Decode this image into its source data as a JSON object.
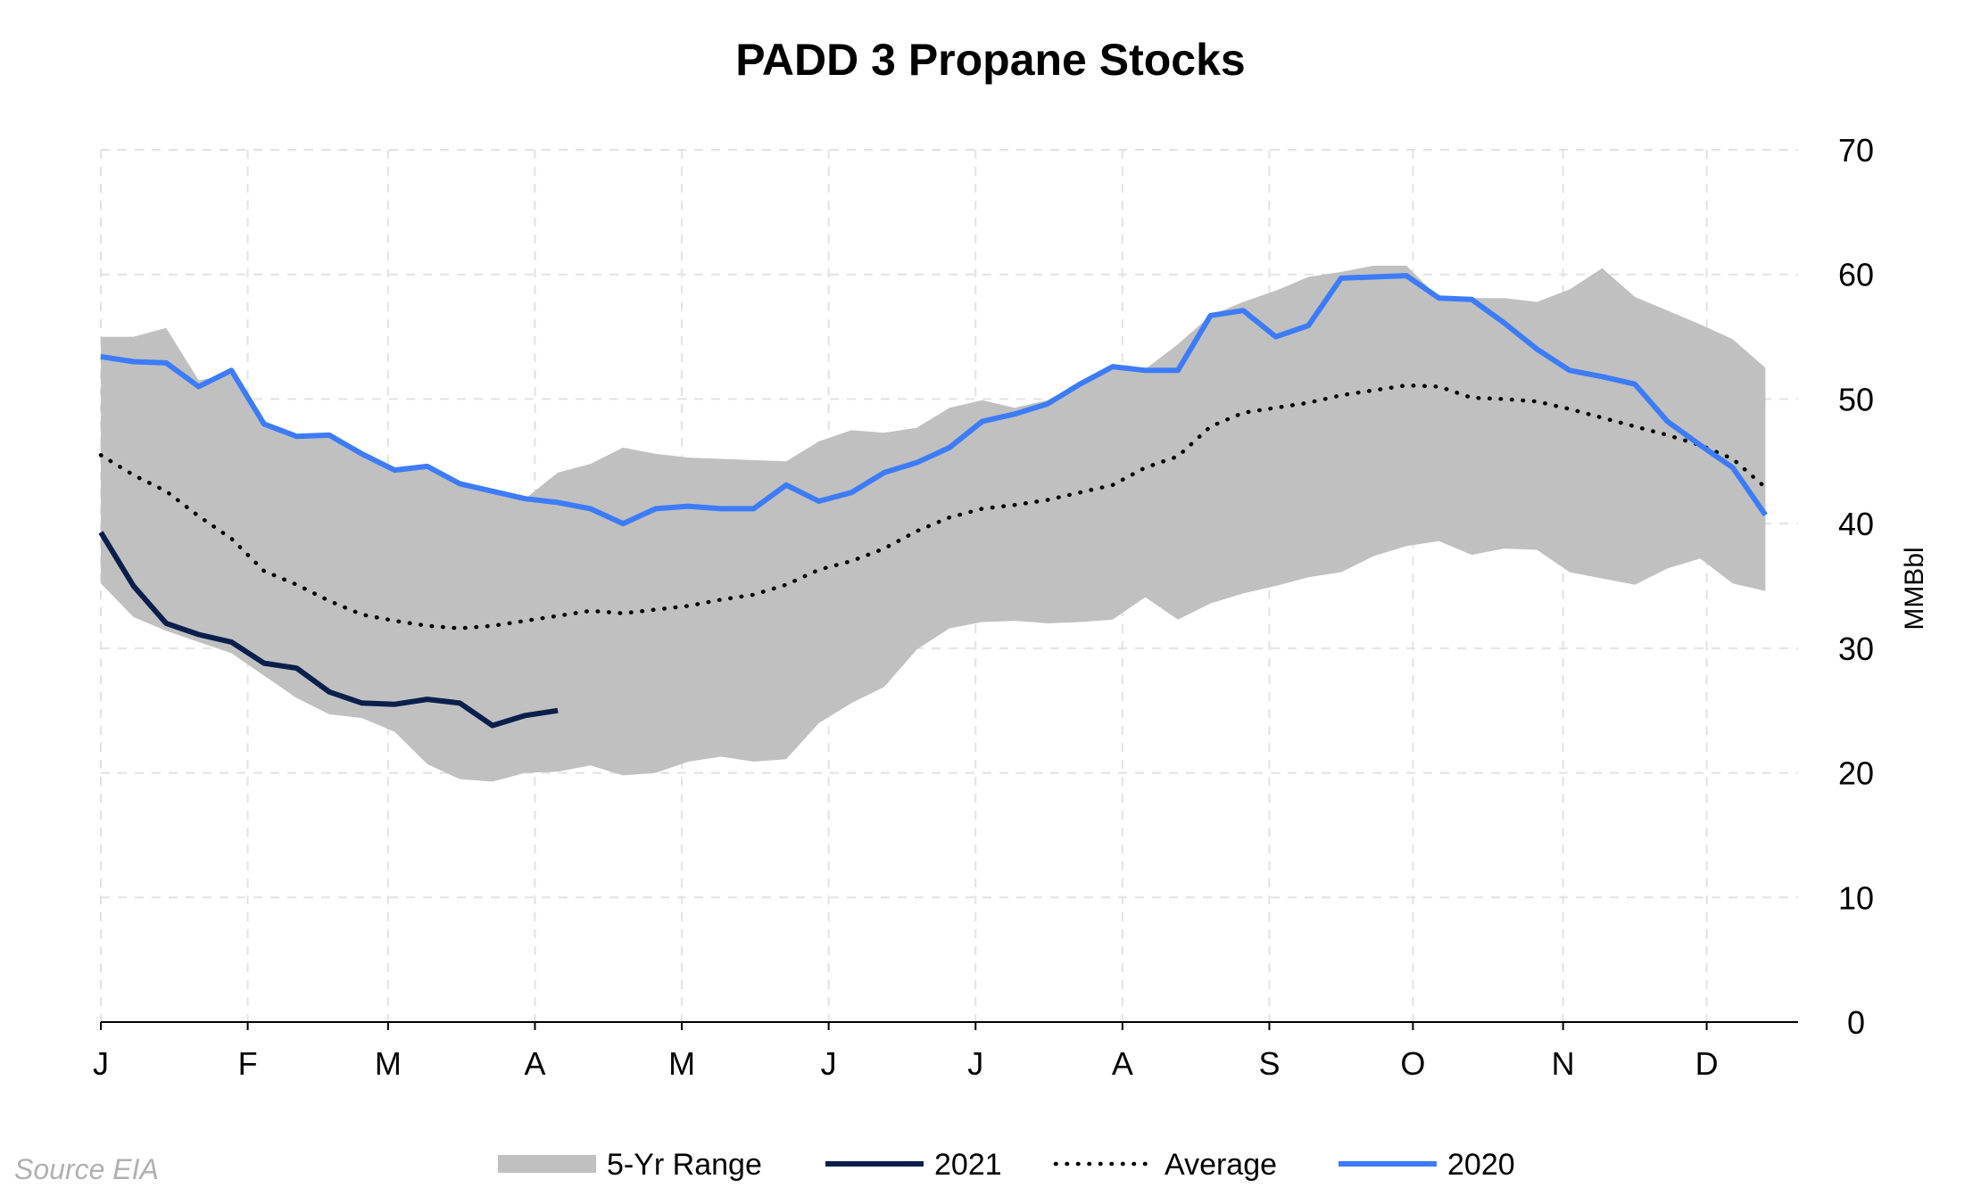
{
  "chart_data": {
    "type": "line",
    "title": "PADD 3 Propane Stocks",
    "ylabel": "MMBbl",
    "xlabel": "",
    "ylim": [
      0,
      70
    ],
    "yticks": [
      0,
      10,
      20,
      30,
      40,
      50,
      60,
      70
    ],
    "grid": true,
    "x_week_range": [
      1,
      53
    ],
    "month_labels": [
      "J",
      "F",
      "M",
      "A",
      "M",
      "J",
      "J",
      "A",
      "S",
      "O",
      "N",
      "D"
    ],
    "month_start_weeks": [
      1,
      5.5,
      9.8,
      14.3,
      18.8,
      23.3,
      27.8,
      32.3,
      36.8,
      41.2,
      45.8,
      50.2
    ],
    "legend_position": "bottom",
    "range_band": {
      "name": "5-Yr Range",
      "color": "#c0c0c0",
      "upper": [
        55,
        55,
        55.7,
        51.5,
        52,
        48,
        47,
        47.1,
        45.4,
        44.3,
        44.6,
        43.2,
        42.5,
        42,
        44.1,
        44.8,
        46.1,
        45.6,
        45.3,
        45.2,
        45.1,
        45,
        46.6,
        47.5,
        47.3,
        47.7,
        49.3,
        49.9,
        49.3,
        49.9,
        51.3,
        52.6,
        52.4,
        54.4,
        56.7,
        57.8,
        58.7,
        59.8,
        60.2,
        60.7,
        60.7,
        58.1,
        58.1,
        58.1,
        57.8,
        58.8,
        60.5,
        58.2,
        57.1,
        56,
        54.8,
        52.5
      ],
      "lower": [
        35.2,
        32.5,
        31.4,
        30.5,
        29.6,
        27.8,
        26,
        24.7,
        24.4,
        23.3,
        20.7,
        19.5,
        19.3,
        20,
        20.1,
        20.6,
        19.8,
        20,
        20.9,
        21.3,
        20.9,
        21.1,
        24,
        25.6,
        26.9,
        29.9,
        31.6,
        32.1,
        32.2,
        32,
        32.1,
        32.3,
        34.1,
        32.3,
        33.6,
        34.4,
        35,
        35.7,
        36.1,
        37.4,
        38.2,
        38.6,
        37.5,
        38,
        37.9,
        36.1,
        35.6,
        35.1,
        36.4,
        37.2,
        35.2,
        34.6
      ]
    },
    "series": [
      {
        "name": "2021",
        "color": "#0b1f4d",
        "style": "solid",
        "values": [
          39.3,
          35,
          32,
          31.1,
          30.5,
          28.8,
          28.4,
          26.5,
          25.6,
          25.5,
          25.9,
          25.6,
          23.8,
          24.6,
          25
        ]
      },
      {
        "name": "Average",
        "color": "#000000",
        "style": "dotted",
        "values": [
          45.5,
          43.9,
          42.6,
          40.6,
          38.8,
          36.2,
          35.1,
          33.8,
          32.7,
          32.2,
          31.8,
          31.6,
          31.8,
          32.2,
          32.6,
          33,
          32.8,
          33.1,
          33.4,
          33.9,
          34.3,
          35.1,
          36.3,
          37,
          38,
          39.4,
          40.5,
          41.2,
          41.5,
          41.9,
          42.5,
          43.1,
          44.5,
          45.4,
          47.8,
          48.9,
          49.3,
          49.7,
          50.3,
          50.7,
          51.1,
          51,
          50.1,
          50,
          49.8,
          49.2,
          48.5,
          47.8,
          47.1,
          46.3,
          45.2,
          42.9
        ]
      },
      {
        "name": "2020",
        "color": "#3d7bfa",
        "style": "solid",
        "values": [
          53.4,
          53,
          52.9,
          51,
          52.3,
          48,
          47,
          47.1,
          45.6,
          44.3,
          44.6,
          43.2,
          42.6,
          42,
          41.7,
          41.2,
          40,
          41.2,
          41.4,
          41.2,
          41.2,
          43.1,
          41.8,
          42.5,
          44.1,
          44.9,
          46.1,
          48.2,
          48.8,
          49.6,
          51.2,
          52.6,
          52.3,
          52.3,
          56.7,
          57.1,
          55,
          55.9,
          59.7,
          59.8,
          59.9,
          58.1,
          58,
          56.1,
          54,
          52.3,
          51.8,
          51.2,
          48.2,
          46.3,
          44.5,
          40.7
        ]
      }
    ],
    "legend": [
      "5-Yr Range",
      "2021",
      "Average",
      "2020"
    ],
    "source": "Source EIA"
  }
}
